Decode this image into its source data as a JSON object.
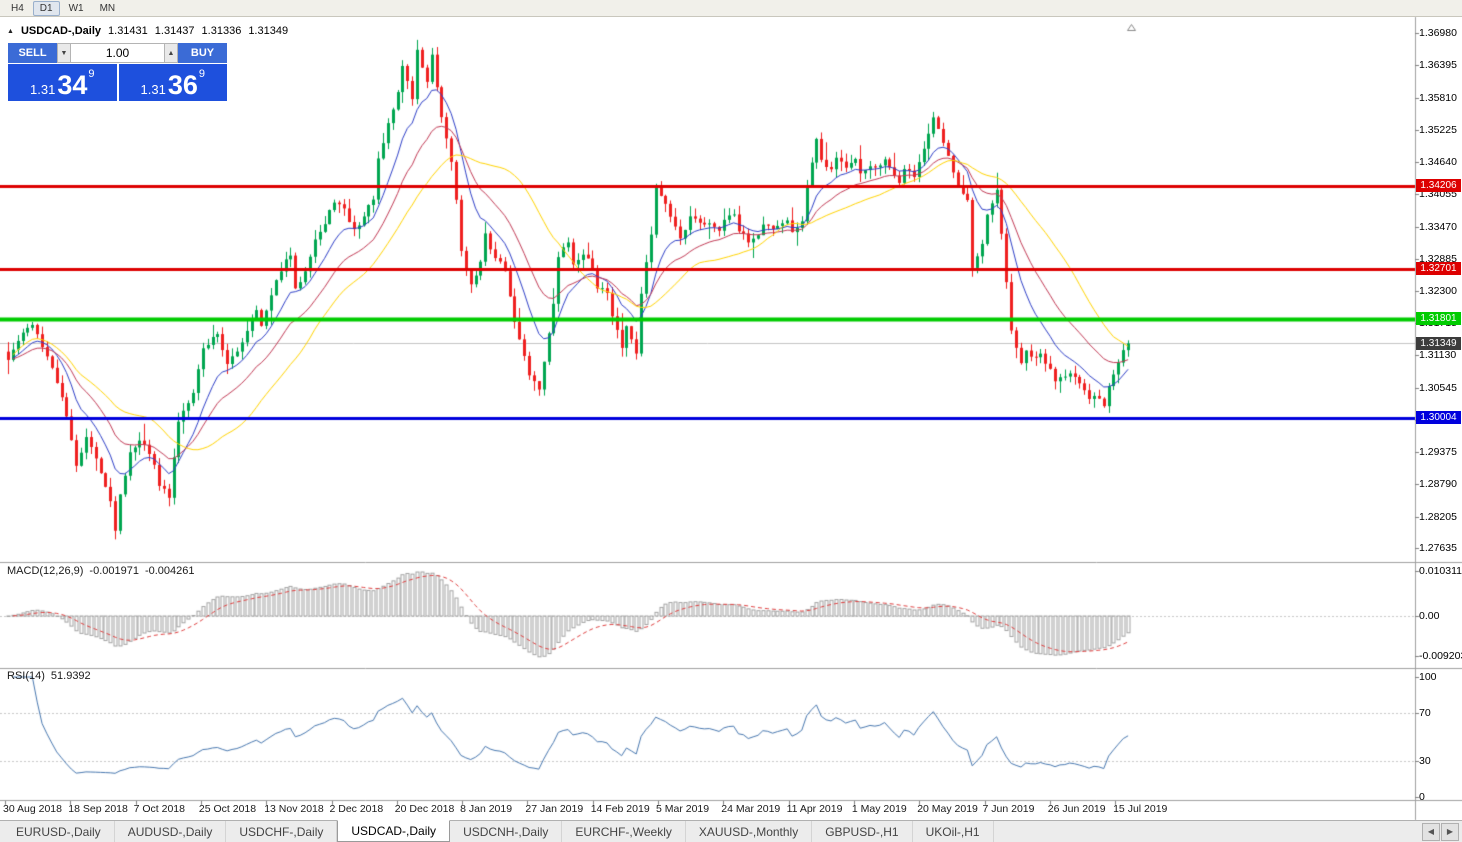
{
  "toolbar": {
    "timeframes": [
      {
        "label": "H4",
        "active": false
      },
      {
        "label": "D1",
        "active": true
      },
      {
        "label": "W1",
        "active": false
      },
      {
        "label": "MN",
        "active": false
      }
    ]
  },
  "header": {
    "symbol": "USDCAD-,Daily",
    "direction_icon": "▲"
  },
  "trade_panel": {
    "sell_label": "SELL",
    "buy_label": "BUY",
    "volume": "1.00",
    "spin_down_icon": "▼",
    "spin_up_icon": "▲",
    "bid": {
      "prefix": "1.31",
      "big": "34",
      "sup": "9"
    },
    "ask": {
      "prefix": "1.31",
      "big": "36",
      "sup": "9"
    }
  },
  "price_axis": {
    "labels": [
      "1.36980",
      "1.36395",
      "1.35810",
      "1.35225",
      "1.34640",
      "1.34055",
      "1.33470",
      "1.32885",
      "1.32300",
      "1.31715",
      "1.31130",
      "1.30545",
      "1.29960",
      "1.29375",
      "1.28790",
      "1.28205",
      "1.27635"
    ]
  },
  "indicators": {
    "macd": {
      "title": "MACD(12,26,9)",
      "value_main": "-0.001971",
      "value_signal": "-0.004261",
      "fast": 12,
      "slow": 26,
      "signal": 9,
      "axis": [
        {
          "text": "0.010311",
          "value": 0.010311
        },
        {
          "text": "0.00",
          "value": 0
        },
        {
          "text": "-0.009203",
          "value": -0.009203
        }
      ]
    },
    "rsi": {
      "title": "RSI(14)",
      "value": "51.9392",
      "period": 14,
      "levels": [
        70,
        30
      ],
      "axis": [
        {
          "text": "100",
          "value": 100
        },
        {
          "text": "70",
          "value": 70
        },
        {
          "text": "30",
          "value": 30
        },
        {
          "text": "0",
          "value": 0
        }
      ]
    }
  },
  "date_axis": {
    "labels": [
      "30 Aug 2018",
      "18 Sep 2018",
      "7 Oct 2018",
      "25 Oct 2018",
      "13 Nov 2018",
      "2 Dec 2018",
      "20 Dec 2018",
      "8 Jan 2019",
      "27 Jan 2019",
      "14 Feb 2019",
      "5 Mar 2019",
      "24 Mar 2019",
      "11 Apr 2019",
      "1 May 2019",
      "20 May 2019",
      "7 Jun 2019",
      "26 Jun 2019",
      "15 Jul 2019"
    ]
  },
  "tabs": [
    {
      "label": "EURUSD-,Daily",
      "active": false
    },
    {
      "label": "AUDUSD-,Daily",
      "active": false
    },
    {
      "label": "USDCHF-,Daily",
      "active": false
    },
    {
      "label": "USDCAD-,Daily",
      "active": true
    },
    {
      "label": "USDCNH-,Daily",
      "active": false
    },
    {
      "label": "EURCHF-,Weekly",
      "active": false
    },
    {
      "label": "XAUUSD-,Monthly",
      "active": false
    },
    {
      "label": "GBPUSD-,H1",
      "active": false
    },
    {
      "label": "UKOil-,H1",
      "active": false
    }
  ],
  "tab_scroll": {
    "left_icon": "◀",
    "right_icon": "▶"
  },
  "chart_data": {
    "type": "candlestick",
    "symbol": "USDCAD-",
    "timeframe": "Daily",
    "ohlc_header": {
      "open": "1.31431",
      "high": "1.31437",
      "low": "1.31336",
      "close": "1.31349"
    },
    "price_top": 1.3718,
    "price_bottom": 1.2742,
    "bar_count": 231,
    "last_close": 1.31349,
    "close_anchors": [
      [
        0,
        1.3105
      ],
      [
        2,
        1.314
      ],
      [
        5,
        1.3172
      ],
      [
        8,
        1.311
      ],
      [
        11,
        1.304
      ],
      [
        14,
        1.2915
      ],
      [
        16,
        1.2965
      ],
      [
        19,
        1.2905
      ],
      [
        21,
        1.2845
      ],
      [
        22,
        1.28
      ],
      [
        23,
        1.286
      ],
      [
        25,
        1.294
      ],
      [
        27,
        1.2962
      ],
      [
        30,
        1.292
      ],
      [
        31,
        1.288
      ],
      [
        33,
        1.2855
      ],
      [
        35,
        1.2995
      ],
      [
        38,
        1.305
      ],
      [
        40,
        1.3125
      ],
      [
        43,
        1.3155
      ],
      [
        45,
        1.3095
      ],
      [
        47,
        1.312
      ],
      [
        49,
        1.316
      ],
      [
        51,
        1.32
      ],
      [
        52,
        1.3165
      ],
      [
        54,
        1.322
      ],
      [
        56,
        1.327
      ],
      [
        58,
        1.3295
      ],
      [
        59,
        1.323
      ],
      [
        61,
        1.327
      ],
      [
        63,
        1.3325
      ],
      [
        65,
        1.335
      ],
      [
        67,
        1.3395
      ],
      [
        69,
        1.3375
      ],
      [
        71,
        1.334
      ],
      [
        73,
        1.3365
      ],
      [
        75,
        1.34
      ],
      [
        76,
        1.3465
      ],
      [
        78,
        1.353
      ],
      [
        80,
        1.359
      ],
      [
        81,
        1.364
      ],
      [
        83,
        1.358
      ],
      [
        84,
        1.3665
      ],
      [
        86,
        1.361
      ],
      [
        87,
        1.3655
      ],
      [
        89,
        1.354
      ],
      [
        91,
        1.3465
      ],
      [
        92,
        1.3395
      ],
      [
        93,
        1.3305
      ],
      [
        95,
        1.324
      ],
      [
        97,
        1.328
      ],
      [
        98,
        1.333
      ],
      [
        100,
        1.329
      ],
      [
        102,
        1.327
      ],
      [
        103,
        1.3215
      ],
      [
        105,
        1.314
      ],
      [
        107,
        1.308
      ],
      [
        109,
        1.3055
      ],
      [
        110,
        1.31
      ],
      [
        112,
        1.321
      ],
      [
        113,
        1.329
      ],
      [
        115,
        1.332
      ],
      [
        116,
        1.3275
      ],
      [
        118,
        1.33
      ],
      [
        120,
        1.327
      ],
      [
        121,
        1.324
      ],
      [
        123,
        1.3225
      ],
      [
        124,
        1.318
      ],
      [
        126,
        1.313
      ],
      [
        127,
        1.3165
      ],
      [
        129,
        1.312
      ],
      [
        130,
        1.323
      ],
      [
        132,
        1.333
      ],
      [
        133,
        1.342
      ],
      [
        135,
        1.339
      ],
      [
        137,
        1.335
      ],
      [
        138,
        1.332
      ],
      [
        140,
        1.336
      ],
      [
        141,
        1.3365
      ],
      [
        143,
        1.335
      ],
      [
        144,
        1.3355
      ],
      [
        146,
        1.334
      ],
      [
        147,
        1.336
      ],
      [
        149,
        1.337
      ],
      [
        150,
        1.334
      ],
      [
        152,
        1.332
      ],
      [
        154,
        1.333
      ],
      [
        155,
        1.335
      ],
      [
        157,
        1.3345
      ],
      [
        158,
        1.335
      ],
      [
        160,
        1.336
      ],
      [
        161,
        1.3335
      ],
      [
        163,
        1.336
      ],
      [
        164,
        1.342
      ],
      [
        166,
        1.351
      ],
      [
        167,
        1.347
      ],
      [
        169,
        1.345
      ],
      [
        170,
        1.3475
      ],
      [
        172,
        1.3455
      ],
      [
        174,
        1.3465
      ],
      [
        175,
        1.344
      ],
      [
        177,
        1.346
      ],
      [
        178,
        1.345
      ],
      [
        180,
        1.3465
      ],
      [
        181,
        1.345
      ],
      [
        183,
        1.343
      ],
      [
        184,
        1.345
      ],
      [
        186,
        1.344
      ],
      [
        187,
        1.3465
      ],
      [
        189,
        1.351
      ],
      [
        190,
        1.3545
      ],
      [
        192,
        1.3495
      ],
      [
        194,
        1.345
      ],
      [
        195,
        1.3425
      ],
      [
        197,
        1.3395
      ],
      [
        198,
        1.327
      ],
      [
        200,
        1.331
      ],
      [
        201,
        1.3365
      ],
      [
        203,
        1.341
      ],
      [
        204,
        1.333
      ],
      [
        206,
        1.316
      ],
      [
        208,
        1.3095
      ],
      [
        209,
        1.312
      ],
      [
        211,
        1.3105
      ],
      [
        212,
        1.3115
      ],
      [
        214,
        1.3085
      ],
      [
        215,
        1.307
      ],
      [
        217,
        1.308
      ],
      [
        218,
        1.3085
      ],
      [
        220,
        1.306
      ],
      [
        222,
        1.303
      ],
      [
        223,
        1.304
      ],
      [
        225,
        1.3025
      ],
      [
        226,
        1.306
      ],
      [
        228,
        1.3105
      ],
      [
        229,
        1.3125
      ],
      [
        230,
        1.31349
      ]
    ],
    "moving_averages": [
      {
        "type": "ema",
        "period": 10,
        "color": "#2e3fc8"
      },
      {
        "type": "ema",
        "period": 20,
        "color": "#c23a55"
      },
      {
        "type": "sma",
        "period": 30,
        "color": "#ffd400"
      }
    ],
    "levels": [
      {
        "value": 1.34206,
        "text": "1.34206",
        "color": "#dd0000",
        "width": 3
      },
      {
        "value": 1.32701,
        "text": "1.32701",
        "color": "#dd0000",
        "width": 3
      },
      {
        "value": 1.31801,
        "text": "1.31801",
        "color": "#00cc00",
        "width": 4
      },
      {
        "value": 1.30004,
        "text": "1.30004",
        "color": "#0000dd",
        "width": 3
      }
    ],
    "bid_marker": {
      "value": 1.31349,
      "text": "1.31349",
      "bg": "#3c3c3c",
      "line_color": "#c4c4c4"
    },
    "colors": {
      "up": "#00a650",
      "down": "#ef2020",
      "macd_hist": "#a3a3a3",
      "macd_signal": "#e04040",
      "rsi": "#4878b0"
    }
  }
}
